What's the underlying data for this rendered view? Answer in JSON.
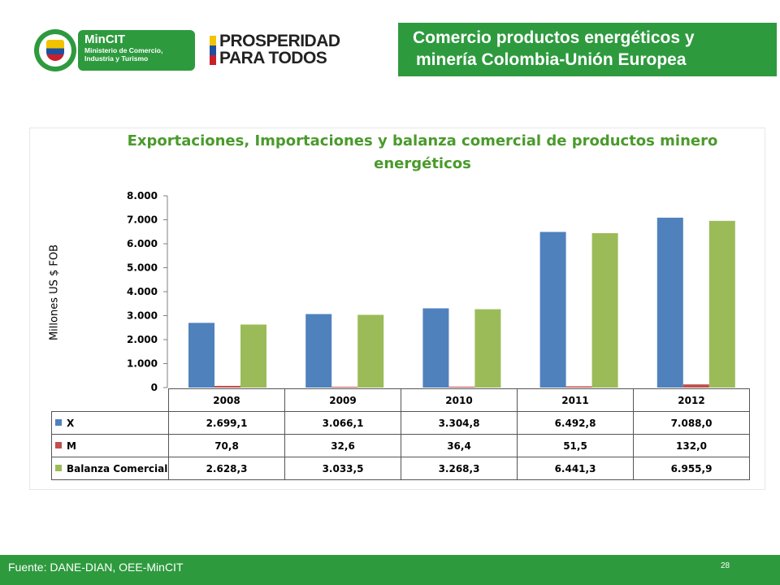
{
  "header": {
    "mincit_title": "MinCIT",
    "mincit_line1": "Ministerio de Comercio,",
    "mincit_line2": "Industria y Turismo",
    "prosperidad_line1": "PROSPERIDAD",
    "prosperidad_line2": "PARA TODOS",
    "slide_title_line1": "Comercio productos energéticos y",
    "slide_title_line2": "minería Colombia-Unión Europea"
  },
  "chart_data": {
    "type": "bar",
    "title": "Exportaciones, Importaciones y balanza comercial de productos minero energéticos",
    "title_line1": "Exportaciones, Importaciones y balanza comercial de productos minero",
    "title_line2": "energéticos",
    "ylabel": "Millones US $ FOB",
    "xlabel": "",
    "ylim": [
      0,
      8000
    ],
    "yticks": [
      "0",
      "1.000",
      "2.000",
      "3.000",
      "4.000",
      "5.000",
      "6.000",
      "7.000",
      "8.000"
    ],
    "ytick_values": [
      0,
      1000,
      2000,
      3000,
      4000,
      5000,
      6000,
      7000,
      8000
    ],
    "categories": [
      "2008",
      "2009",
      "2010",
      "2011",
      "2012"
    ],
    "series": [
      {
        "name": "X",
        "color": "#4f81bd",
        "values": [
          2699.1,
          3066.1,
          3304.8,
          6492.8,
          7088.0
        ],
        "labels": [
          "2.699,1",
          "3.066,1",
          "3.304,8",
          "6.492,8",
          "7.088,0"
        ]
      },
      {
        "name": "M",
        "color": "#c0504d",
        "values": [
          70.8,
          32.6,
          36.4,
          51.5,
          132.0
        ],
        "labels": [
          "70,8",
          "32,6",
          "36,4",
          "51,5",
          "132,0"
        ]
      },
      {
        "name": "Balanza Comercial",
        "color": "#9bbb59",
        "values": [
          2628.3,
          3033.5,
          3268.3,
          6441.3,
          6955.9
        ],
        "labels": [
          "2.628,3",
          "3.033,5",
          "3.268,3",
          "6.441,3",
          "6.955,9"
        ]
      }
    ],
    "grid": false,
    "legend": "data-table"
  },
  "footer": {
    "source": "Fuente: DANE-DIAN, OEE-MinCIT",
    "page_number": "28"
  }
}
